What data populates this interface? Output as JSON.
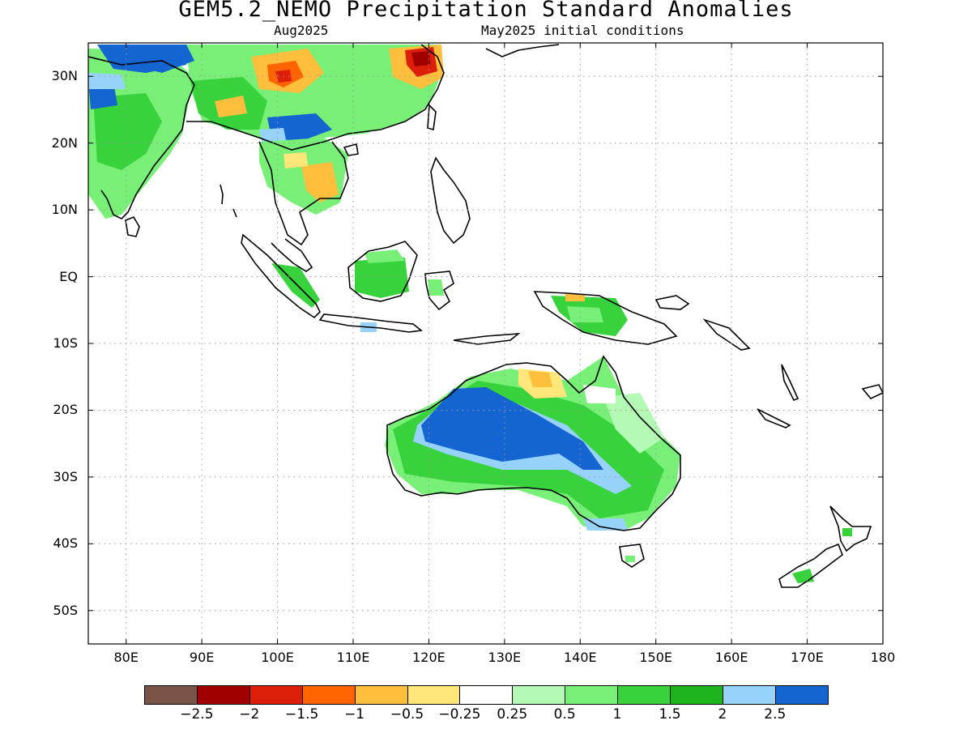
{
  "title": "GEM5.2_NEMO Precipitation Standard Anomalies",
  "subtitle_left": "Aug2025",
  "subtitle_right": "May2025 initial conditions",
  "map": {
    "lon_range": [
      75,
      180
    ],
    "lat_range": [
      -55,
      35
    ],
    "lat_ticks": [
      {
        "lat": 30,
        "label": "30N"
      },
      {
        "lat": 20,
        "label": "20N"
      },
      {
        "lat": 10,
        "label": "10N"
      },
      {
        "lat": 0,
        "label": "EQ"
      },
      {
        "lat": -10,
        "label": "10S"
      },
      {
        "lat": -20,
        "label": "20S"
      },
      {
        "lat": -30,
        "label": "30S"
      },
      {
        "lat": -40,
        "label": "40S"
      },
      {
        "lat": -50,
        "label": "50S"
      }
    ],
    "lon_ticks": [
      {
        "lon": 80,
        "label": "80E"
      },
      {
        "lon": 90,
        "label": "90E"
      },
      {
        "lon": 100,
        "label": "100E"
      },
      {
        "lon": 110,
        "label": "110E"
      },
      {
        "lon": 120,
        "label": "120E"
      },
      {
        "lon": 130,
        "label": "130E"
      },
      {
        "lon": 140,
        "label": "140E"
      },
      {
        "lon": 150,
        "label": "150E"
      },
      {
        "lon": 160,
        "label": "160E"
      },
      {
        "lon": 170,
        "label": "170E"
      },
      {
        "lon": 180,
        "label": "180"
      }
    ],
    "grid": true
  },
  "colorbar": {
    "colors": [
      "#7a5447",
      "#a00000",
      "#dc1e0a",
      "#ff6400",
      "#ffbe3c",
      "#ffe678",
      "#ffffff",
      "#b4fab4",
      "#78f078",
      "#37d23c",
      "#1eb41e",
      "#96d2fa",
      "#1464d2"
    ],
    "labels": [
      "-2.5",
      "-2",
      "-1.5",
      "-1",
      "-0.5",
      "-0.25",
      "0.25",
      "0.5",
      "1",
      "1.5",
      "2",
      "2.5"
    ]
  }
}
